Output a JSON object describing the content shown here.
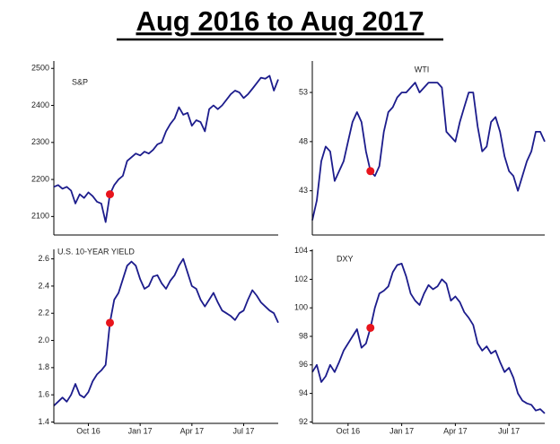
{
  "title": "Aug 2016 to Aug 2017",
  "chart_data": [
    {
      "type": "line",
      "title": "S&P",
      "ylim": [
        2050,
        2520
      ],
      "yticks": [
        2100,
        2200,
        2300,
        2400,
        2500
      ],
      "series": [
        {
          "color": "#1c1c8c",
          "values": [
            2180,
            2185,
            2175,
            2180,
            2170,
            2135,
            2160,
            2150,
            2165,
            2155,
            2140,
            2135,
            2085,
            2160,
            2185,
            2200,
            2210,
            2250,
            2260,
            2270,
            2265,
            2275,
            2270,
            2280,
            2295,
            2300,
            2330,
            2350,
            2365,
            2395,
            2375,
            2380,
            2345,
            2360,
            2355,
            2330,
            2390,
            2400,
            2390,
            2400,
            2415,
            2430,
            2440,
            2435,
            2420,
            2430,
            2445,
            2460,
            2475,
            2472,
            2480,
            2440,
            2470
          ]
        },
        {
          "color": "#e8141c",
          "marker": true,
          "values": [
            null,
            null,
            null,
            null,
            null,
            null,
            null,
            null,
            null,
            null,
            null,
            null,
            null,
            2160,
            null,
            null,
            null,
            null,
            null,
            null,
            null,
            null,
            null,
            null,
            null,
            null,
            null,
            null,
            null,
            null,
            null,
            null,
            null,
            null,
            null,
            null,
            null,
            null,
            null,
            null,
            null,
            null,
            null,
            null,
            null,
            null,
            null,
            null,
            null,
            null,
            null,
            null,
            null
          ]
        }
      ]
    },
    {
      "type": "line",
      "title": "WTI",
      "ylim": [
        38.5,
        56.2
      ],
      "yticks": [
        43,
        48,
        53
      ],
      "series": [
        {
          "color": "#1c1c8c",
          "values": [
            40,
            42,
            46,
            47.5,
            47,
            44,
            45,
            46,
            48,
            50,
            51,
            50,
            47,
            45,
            44.5,
            45.5,
            49,
            51,
            51.5,
            52.5,
            53,
            53,
            53.5,
            54,
            53,
            53.5,
            54,
            54,
            54,
            53.5,
            49,
            48.5,
            48,
            50,
            51.5,
            53,
            53,
            49.5,
            47,
            47.5,
            50,
            50.5,
            49,
            46.5,
            45,
            44.5,
            43,
            44.5,
            46,
            47,
            49,
            49,
            48
          ]
        },
        {
          "color": "#e8141c",
          "marker": true,
          "values": [
            null,
            null,
            null,
            null,
            null,
            null,
            null,
            null,
            null,
            null,
            null,
            null,
            null,
            45,
            null,
            null,
            null,
            null,
            null,
            null,
            null,
            null,
            null,
            null,
            null,
            null,
            null,
            null,
            null,
            null,
            null,
            null,
            null,
            null,
            null,
            null,
            null,
            null,
            null,
            null,
            null,
            null,
            null,
            null,
            null,
            null,
            null,
            null,
            null,
            null,
            null,
            null,
            null
          ]
        }
      ]
    },
    {
      "type": "line",
      "title": "U.S. 10-YEAR YIELD",
      "ylim": [
        1.39,
        2.67
      ],
      "yticks": [
        1.4,
        1.6,
        1.8,
        {
          "value": 2,
          "label": "2.0"
        },
        2.2,
        2.4,
        2.6
      ],
      "categories": [
        null,
        null,
        null,
        null,
        null,
        null,
        null,
        null,
        "Oct 16",
        null,
        null,
        null,
        null,
        null,
        null,
        null,
        null,
        null,
        null,
        null,
        "Jan 17",
        null,
        null,
        null,
        null,
        null,
        null,
        null,
        null,
        null,
        null,
        null,
        "Apr 17",
        null,
        null,
        null,
        null,
        null,
        null,
        null,
        null,
        null,
        null,
        null,
        "Jul 17",
        null,
        null,
        null,
        null,
        null,
        null,
        null,
        null
      ],
      "series": [
        {
          "color": "#1c1c8c",
          "values": [
            1.52,
            1.55,
            1.58,
            1.55,
            1.6,
            1.68,
            1.6,
            1.58,
            1.62,
            1.7,
            1.75,
            1.78,
            1.82,
            2.13,
            2.3,
            2.35,
            2.45,
            2.55,
            2.58,
            2.55,
            2.45,
            2.38,
            2.4,
            2.47,
            2.48,
            2.42,
            2.38,
            2.44,
            2.48,
            2.55,
            2.6,
            2.5,
            2.4,
            2.38,
            2.3,
            2.25,
            2.3,
            2.35,
            2.28,
            2.22,
            2.2,
            2.18,
            2.15,
            2.2,
            2.22,
            2.3,
            2.37,
            2.33,
            2.28,
            2.25,
            2.22,
            2.2,
            2.13
          ]
        },
        {
          "color": "#e8141c",
          "marker": true,
          "values": [
            null,
            null,
            null,
            null,
            null,
            null,
            null,
            null,
            null,
            null,
            null,
            null,
            null,
            2.13,
            null,
            null,
            null,
            null,
            null,
            null,
            null,
            null,
            null,
            null,
            null,
            null,
            null,
            null,
            null,
            null,
            null,
            null,
            null,
            null,
            null,
            null,
            null,
            null,
            null,
            null,
            null,
            null,
            null,
            null,
            null,
            null,
            null,
            null,
            null,
            null,
            null,
            null,
            null
          ]
        }
      ]
    },
    {
      "type": "line",
      "title": "DXY",
      "ylim": [
        91.9,
        104.1
      ],
      "yticks": [
        92,
        94,
        96,
        98,
        100,
        102,
        104
      ],
      "categories": [
        null,
        null,
        null,
        null,
        null,
        null,
        null,
        null,
        "Oct 16",
        null,
        null,
        null,
        null,
        null,
        null,
        null,
        null,
        null,
        null,
        null,
        "Jan 17",
        null,
        null,
        null,
        null,
        null,
        null,
        null,
        null,
        null,
        null,
        null,
        "Apr 17",
        null,
        null,
        null,
        null,
        null,
        null,
        null,
        null,
        null,
        null,
        null,
        "Jul 17",
        null,
        null,
        null,
        null,
        null,
        null,
        null,
        null
      ],
      "series": [
        {
          "color": "#1c1c8c",
          "values": [
            95.5,
            96,
            94.8,
            95.2,
            96,
            95.5,
            96.2,
            97,
            97.5,
            98,
            98.5,
            97.2,
            97.5,
            98.6,
            100,
            101,
            101.2,
            101.5,
            102.5,
            103,
            103.1,
            102.2,
            101,
            100.5,
            100.2,
            101,
            101.6,
            101.3,
            101.5,
            102,
            101.7,
            100.5,
            100.8,
            100.4,
            99.7,
            99.3,
            98.8,
            97.5,
            97,
            97.3,
            96.8,
            97,
            96.2,
            95.5,
            95.8,
            95.1,
            94,
            93.5,
            93.3,
            93.2,
            92.8,
            92.9,
            92.6
          ]
        },
        {
          "color": "#e8141c",
          "marker": true,
          "values": [
            null,
            null,
            null,
            null,
            null,
            null,
            null,
            null,
            null,
            null,
            null,
            null,
            null,
            98.6,
            null,
            null,
            null,
            null,
            null,
            null,
            null,
            null,
            null,
            null,
            null,
            null,
            null,
            null,
            null,
            null,
            null,
            null,
            null,
            null,
            null,
            null,
            null,
            null,
            null,
            null,
            null,
            null,
            null,
            null,
            null,
            null,
            null,
            null,
            null,
            null,
            null,
            null,
            null
          ]
        }
      ]
    }
  ]
}
